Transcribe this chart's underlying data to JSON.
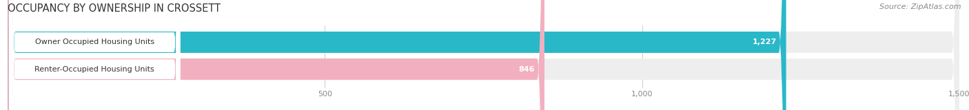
{
  "title": "OCCUPANCY BY OWNERSHIP IN CROSSETT",
  "source": "Source: ZipAtlas.com",
  "categories": [
    "Owner Occupied Housing Units",
    "Renter-Occupied Housing Units"
  ],
  "values": [
    1227,
    846
  ],
  "bar_colors": [
    "#29b8c8",
    "#f2afc0"
  ],
  "xlim_max": 1640,
  "data_max": 1500,
  "xticks": [
    500,
    1000,
    1500
  ],
  "title_fontsize": 10.5,
  "source_fontsize": 8,
  "bar_label_fontsize": 8,
  "category_fontsize": 8,
  "background_color": "#ffffff",
  "bar_bg_color": "#eeeeee",
  "label_bg_color": "#ffffff"
}
